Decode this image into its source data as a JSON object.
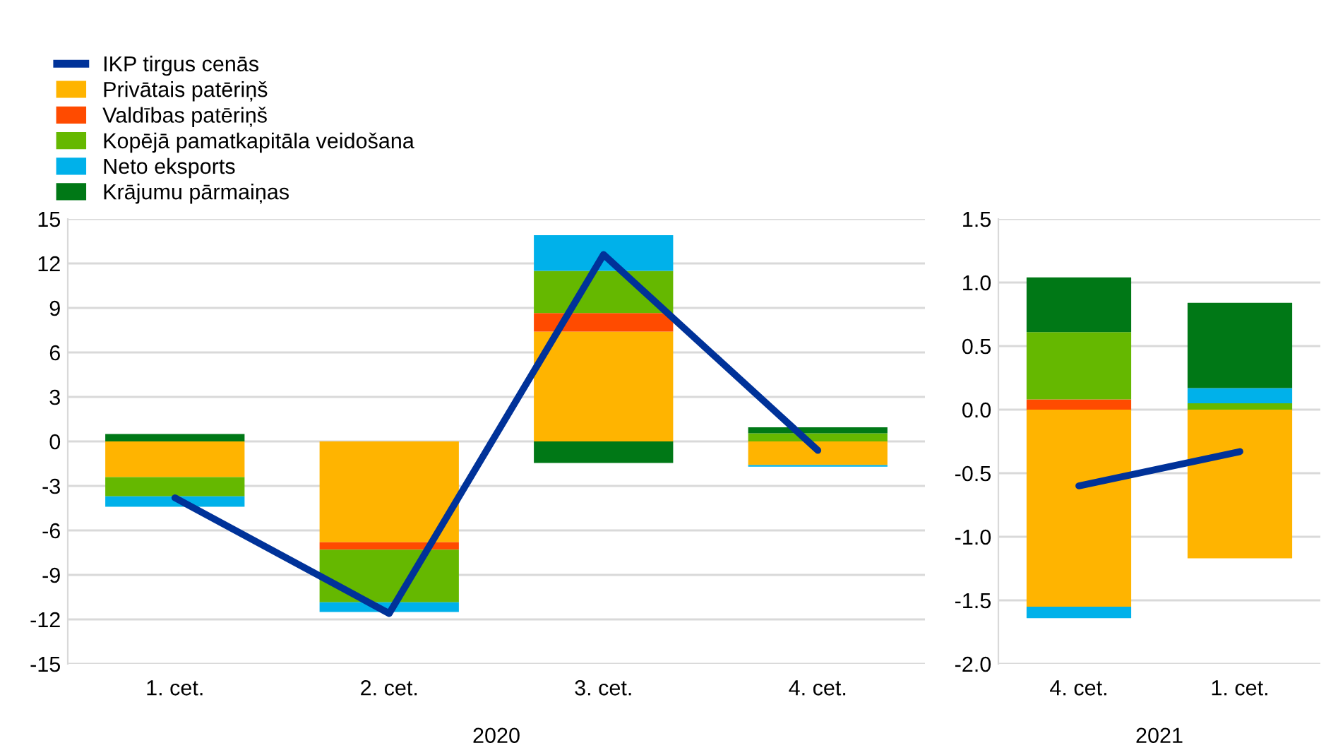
{
  "chart_data": [
    {
      "type": "bar",
      "stacked": true,
      "xlabel": "2020",
      "categories": [
        "1. cet.",
        "2. cet.",
        "3. cet.",
        "4. cet."
      ],
      "ylim": [
        -15,
        15
      ],
      "yticks": [
        -15,
        -12,
        -9,
        -6,
        -3,
        0,
        3,
        6,
        9,
        12,
        15
      ],
      "grid": "y",
      "legend": "top left",
      "series": [
        {
          "name": "IKP tirgus cenās",
          "type": "line",
          "color": "#003299",
          "values": [
            -3.8,
            -11.6,
            12.6,
            -0.6
          ]
        },
        {
          "name": "Privātais patēriņš",
          "color": "#ffb400",
          "values": [
            -2.4,
            -6.8,
            7.4,
            -1.6
          ]
        },
        {
          "name": "Valdības patēriņš",
          "color": "#ff4b00",
          "values": [
            0,
            -0.5,
            1.25,
            0
          ]
        },
        {
          "name": "Kopējā pamatkapitāla veidošana",
          "color": "#65b800",
          "values": [
            -1.3,
            -3.55,
            2.85,
            0.55
          ]
        },
        {
          "name": "Neto eksports",
          "color": "#00b1ea",
          "values": [
            -0.7,
            -0.65,
            2.4,
            -0.1
          ]
        },
        {
          "name": "Krājumu pārmaiņas",
          "color": "#007816",
          "values": [
            0.5,
            0,
            -1.45,
            0.4
          ]
        }
      ]
    },
    {
      "type": "bar",
      "stacked": true,
      "xlabel": "2021",
      "categories": [
        "4. cet.",
        "1. cet."
      ],
      "ylim": [
        -2.0,
        1.5
      ],
      "yticks": [
        {
          "value": -2,
          "label": "-2.0"
        },
        {
          "value": -1.5,
          "label": "-1.5"
        },
        {
          "value": -1,
          "label": "-1.0"
        },
        {
          "value": -0.5,
          "label": "-0.5"
        },
        {
          "value": 0,
          "label": "0.0"
        },
        {
          "value": 0.5,
          "label": "0.5"
        },
        {
          "value": 1,
          "label": "1.0"
        },
        {
          "value": 1.5,
          "label": "1.5"
        }
      ],
      "grid": "y",
      "series": [
        {
          "type": "line",
          "color": "#003299",
          "values": [
            -0.6,
            -0.33
          ]
        },
        {
          "color": "#ffb400",
          "values": [
            -1.55,
            -1.17
          ]
        },
        {
          "color": "#ff4b00",
          "values": [
            0.08,
            0
          ]
        },
        {
          "color": "#65b800",
          "values": [
            0.53,
            0.05
          ]
        },
        {
          "color": "#00b1ea",
          "values": [
            -0.09,
            0.12
          ]
        },
        {
          "color": "#007816",
          "values": [
            0.43,
            0.67
          ]
        }
      ]
    }
  ]
}
